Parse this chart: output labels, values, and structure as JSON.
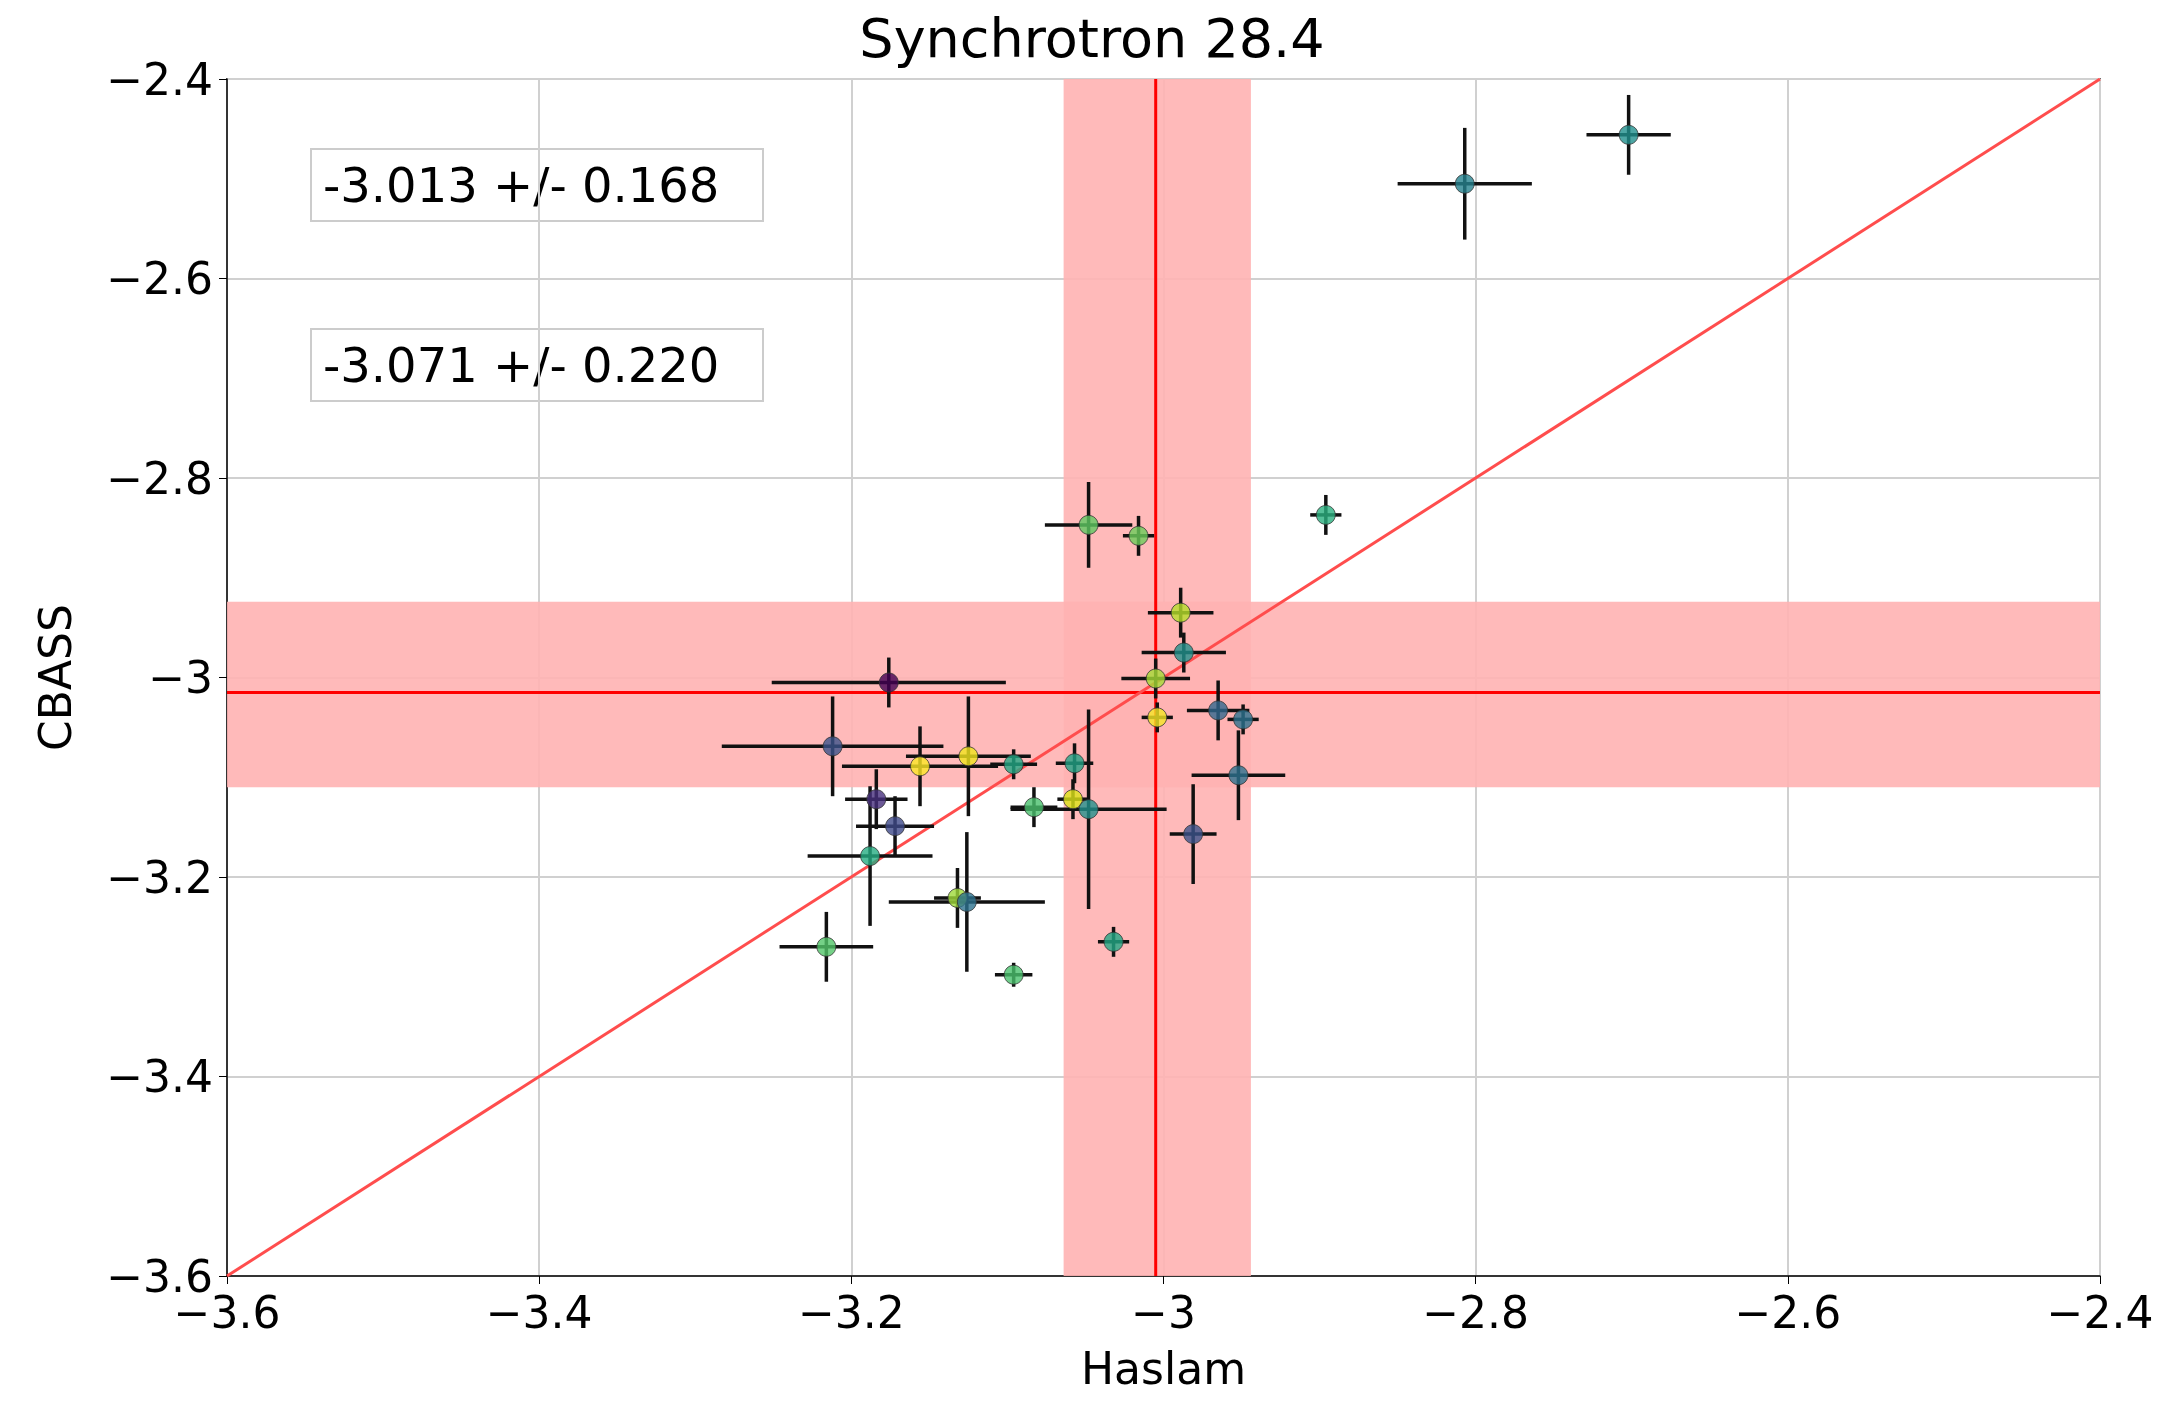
{
  "chart_data": {
    "type": "scatter",
    "title": "Synchrotron 28.4",
    "xlabel": "Haslam",
    "ylabel": "CBASS",
    "xlim": [
      -3.6,
      -2.4
    ],
    "ylim": [
      -3.6,
      -2.4
    ],
    "xticks": [
      -3.6,
      -3.4,
      -3.2,
      -3.0,
      -2.8,
      -2.6,
      -2.4
    ],
    "yticks": [
      -3.6,
      -3.4,
      -3.2,
      -3.0,
      -2.8,
      -2.6,
      -2.4
    ],
    "grid": true,
    "marker": "circle",
    "annotations": [
      "-3.013 +/- 0.168",
      "-3.071 +/- 0.220"
    ],
    "ref_lines": [
      {
        "axis": "x",
        "value": -3.005,
        "color": "#ff0000"
      },
      {
        "axis": "y",
        "value": -3.015,
        "color": "#ff0000"
      }
    ],
    "bands": [
      {
        "axis": "x",
        "from": -3.064,
        "to": -2.944,
        "color": "#ffb3b3"
      },
      {
        "axis": "y",
        "from": -3.11,
        "to": -2.924,
        "color": "#ffb3b3"
      }
    ],
    "series": [
      {
        "x": [
          -2.702,
          -2.807,
          -2.896,
          -3.048,
          -3.016,
          -2.989,
          -2.987,
          -3.005,
          -3.004,
          -2.965,
          -2.949,
          -2.952,
          -2.981,
          -3.032,
          -3.096,
          -3.176,
          -3.212,
          -3.156,
          -3.125,
          -3.096,
          -3.057,
          -3.184,
          -3.172,
          -3.188,
          -3.083,
          -3.058,
          -3.048,
          -3.132,
          -3.126,
          -3.216
        ],
        "values": [
          -2.456,
          -2.505,
          -2.837,
          -2.847,
          -2.858,
          -2.935,
          -2.975,
          -3.001,
          -3.04,
          -3.033,
          -3.042,
          -3.098,
          -3.157,
          -3.265,
          -3.298,
          -3.005,
          -3.069,
          -3.089,
          -3.079,
          -3.087,
          -3.086,
          -3.122,
          -3.149,
          -3.179,
          -3.13,
          -3.122,
          -3.132,
          -3.221,
          -3.225,
          -3.27
        ],
        "xerrors": [
          0.027,
          0.043,
          0.01,
          0.028,
          0.01,
          0.021,
          0.027,
          0.022,
          0.01,
          0.02,
          0.01,
          0.03,
          0.015,
          0.01,
          0.012,
          0.075,
          0.071,
          0.05,
          0.04,
          0.015,
          0.012,
          0.02,
          0.025,
          0.04,
          0.015,
          0.01,
          0.05,
          0.015,
          0.05,
          0.03
        ],
        "errors": [
          0.04,
          0.056,
          0.02,
          0.043,
          0.02,
          0.025,
          0.02,
          0.02,
          0.015,
          0.03,
          0.015,
          0.045,
          0.05,
          0.015,
          0.012,
          0.025,
          0.05,
          0.04,
          0.06,
          0.015,
          0.02,
          0.03,
          0.03,
          0.07,
          0.02,
          0.02,
          0.1,
          0.03,
          0.07,
          0.035
        ],
        "colors": [
          "#21908d",
          "#26828e",
          "#2ab07f",
          "#5ec962",
          "#6ccd5a",
          "#b5de2b",
          "#21918c",
          "#a5db36",
          "#f5e626",
          "#31688e",
          "#2c728e",
          "#2c728e",
          "#3b528b",
          "#22a785",
          "#4ac16d",
          "#440154",
          "#3b528b",
          "#fde725",
          "#f1e51d",
          "#22a884",
          "#20a386",
          "#472f7d",
          "#3e4a89",
          "#25ac82",
          "#4ac16d",
          "#dde318",
          "#21918c",
          "#9fda3a",
          "#2c728e",
          "#52c569"
        ]
      },
      {
        "type": "line",
        "x": [
          -3.6,
          -2.4
        ],
        "values": [
          -3.6,
          -2.4
        ],
        "color": "#ff4d4d",
        "marker": "none"
      }
    ]
  }
}
